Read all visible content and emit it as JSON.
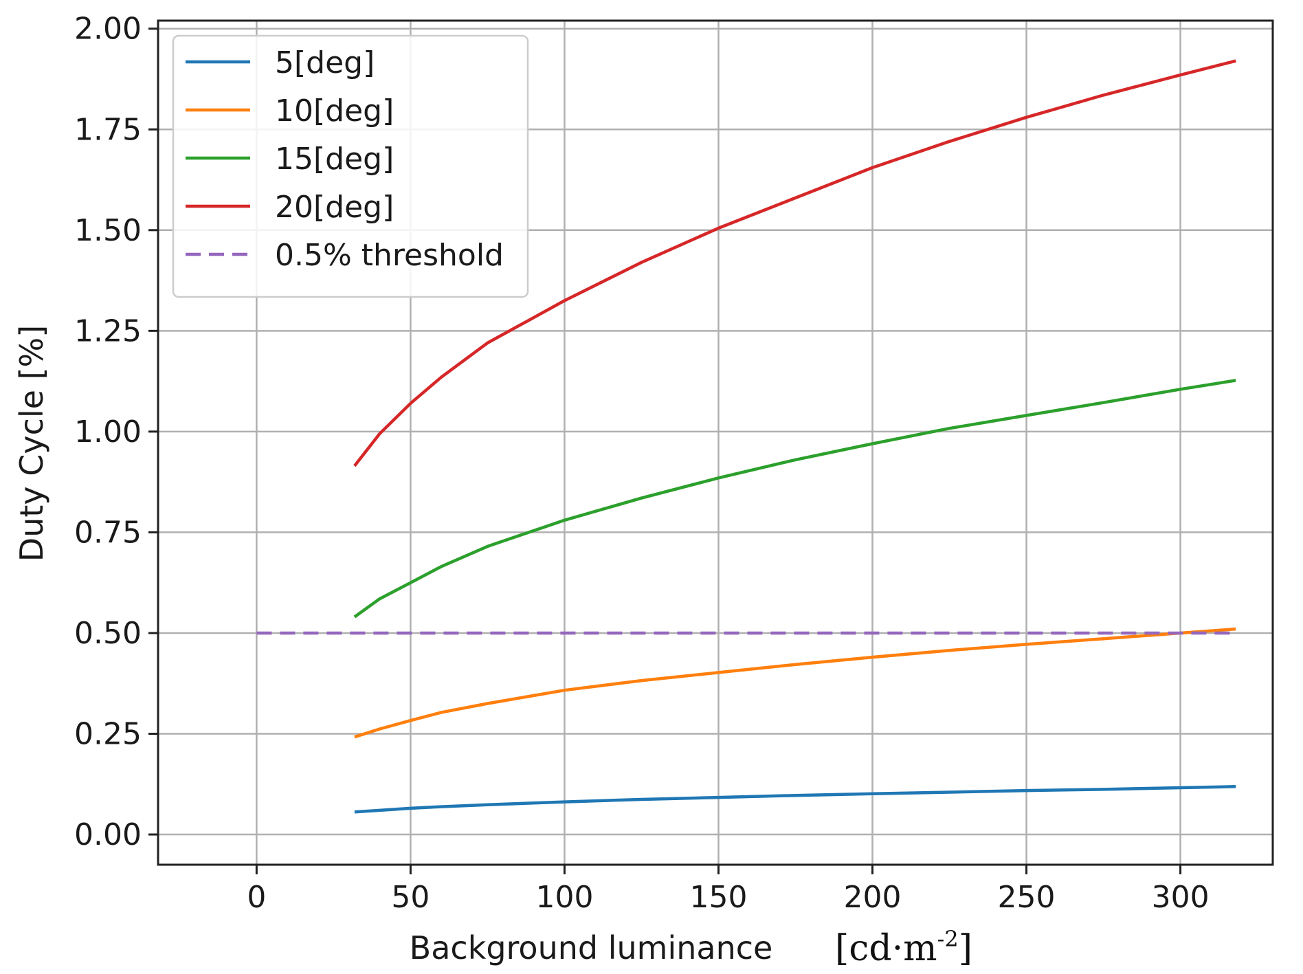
{
  "chart_data": {
    "type": "line",
    "xlabel": "Background luminance",
    "xunit_main": "[cd·m",
    "xunit_sup": "-2",
    "xunit_end": "]",
    "ylabel": "Duty Cycle [%]",
    "xlim": [
      -32,
      330
    ],
    "ylim": [
      -0.075,
      2.02
    ],
    "xticks": [
      0,
      50,
      100,
      150,
      200,
      250,
      300
    ],
    "xtick_labels": [
      "0",
      "50",
      "100",
      "150",
      "200",
      "250",
      "300"
    ],
    "yticks": [
      0.0,
      0.25,
      0.5,
      0.75,
      1.0,
      1.25,
      1.5,
      1.75,
      2.0
    ],
    "ytick_labels": [
      "0.00",
      "0.25",
      "0.50",
      "0.75",
      "1.00",
      "1.25",
      "1.50",
      "1.75",
      "2.00"
    ],
    "grid": true,
    "legend_position": "top-left",
    "series": [
      {
        "name": "5[deg]",
        "color": "#1f77b4",
        "dash": "solid",
        "x": [
          31.8,
          40,
          50,
          60,
          75,
          100,
          125,
          150,
          175,
          200,
          225,
          250,
          275,
          300,
          318
        ],
        "y": [
          0.056,
          0.06,
          0.065,
          0.069,
          0.074,
          0.081,
          0.087,
          0.092,
          0.097,
          0.101,
          0.105,
          0.109,
          0.112,
          0.116,
          0.119
        ]
      },
      {
        "name": "10[deg]",
        "color": "#ff7f0e",
        "dash": "solid",
        "x": [
          31.8,
          40,
          50,
          60,
          75,
          100,
          125,
          150,
          175,
          200,
          225,
          250,
          275,
          300,
          318
        ],
        "y": [
          0.242,
          0.262,
          0.283,
          0.303,
          0.325,
          0.358,
          0.382,
          0.402,
          0.422,
          0.44,
          0.457,
          0.472,
          0.486,
          0.5,
          0.51
        ]
      },
      {
        "name": "15[deg]",
        "color": "#2ca02c",
        "dash": "solid",
        "x": [
          31.8,
          40,
          50,
          60,
          75,
          100,
          125,
          150,
          175,
          200,
          225,
          250,
          275,
          300,
          318
        ],
        "y": [
          0.54,
          0.585,
          0.625,
          0.665,
          0.715,
          0.78,
          0.835,
          0.885,
          0.93,
          0.97,
          1.008,
          1.04,
          1.072,
          1.105,
          1.127
        ]
      },
      {
        "name": "20[deg]",
        "color": "#d62728",
        "dash": "solid",
        "x": [
          31.8,
          40,
          50,
          60,
          75,
          100,
          125,
          150,
          175,
          200,
          225,
          250,
          275,
          300,
          318
        ],
        "y": [
          0.915,
          0.995,
          1.07,
          1.135,
          1.22,
          1.325,
          1.42,
          1.505,
          1.58,
          1.655,
          1.72,
          1.78,
          1.835,
          1.885,
          1.92
        ]
      },
      {
        "name": "0.5% threshold",
        "color": "#9467bd",
        "dash": "dashed",
        "x": [
          0,
          318
        ],
        "y": [
          0.5,
          0.5
        ]
      }
    ]
  }
}
